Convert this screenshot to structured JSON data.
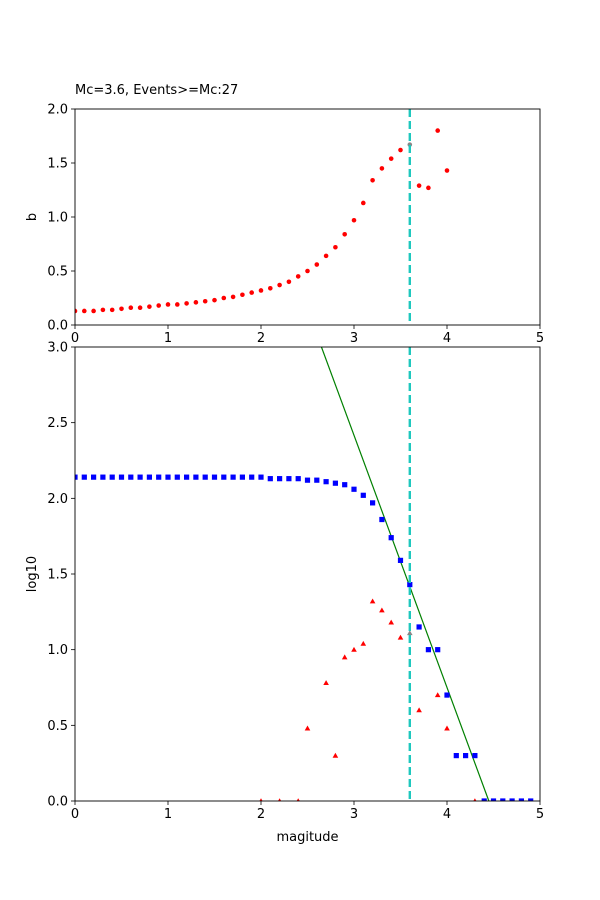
{
  "chart_data": [
    {
      "type": "scatter",
      "title": "Mc=3.6, Events>=Mc:27",
      "xlabel": "",
      "ylabel": "b",
      "xlim": [
        0,
        5
      ],
      "ylim": [
        0,
        2
      ],
      "xticks": [
        0,
        1,
        2,
        3,
        4,
        5
      ],
      "yticks": [
        0.0,
        0.5,
        1.0,
        1.5,
        2.0
      ],
      "grid": false,
      "mc_line": 3.6,
      "series": [
        {
          "color": "#ff0000",
          "marker": "circle",
          "x": [
            0.0,
            0.1,
            0.2,
            0.3,
            0.4,
            0.5,
            0.6,
            0.7,
            0.8,
            0.9,
            1.0,
            1.1,
            1.2,
            1.3,
            1.4,
            1.5,
            1.6,
            1.7,
            1.8,
            1.9,
            2.0,
            2.1,
            2.2,
            2.3,
            2.4,
            2.5,
            2.6,
            2.7,
            2.8,
            2.9,
            3.0,
            3.1,
            3.2,
            3.3,
            3.4,
            3.5,
            3.7,
            3.8,
            3.9,
            4.0
          ],
          "y": [
            0.13,
            0.13,
            0.13,
            0.14,
            0.14,
            0.15,
            0.16,
            0.16,
            0.17,
            0.18,
            0.19,
            0.19,
            0.2,
            0.21,
            0.22,
            0.23,
            0.25,
            0.26,
            0.28,
            0.3,
            0.32,
            0.34,
            0.37,
            0.4,
            0.45,
            0.5,
            0.56,
            0.64,
            0.72,
            0.84,
            0.97,
            1.13,
            1.34,
            1.45,
            1.54,
            1.62,
            1.29,
            1.27,
            1.8,
            1.43
          ]
        },
        {
          "color": "#888888",
          "marker": "circle",
          "x": [
            3.6
          ],
          "y": [
            1.67
          ]
        }
      ]
    },
    {
      "type": "scatter",
      "title": "",
      "xlabel": "magitude",
      "ylabel": "log10",
      "xlim": [
        0,
        5
      ],
      "ylim": [
        0,
        3
      ],
      "xticks": [
        0,
        1,
        2,
        3,
        4,
        5
      ],
      "yticks": [
        0.0,
        0.5,
        1.0,
        1.5,
        2.0,
        2.5,
        3.0
      ],
      "grid": false,
      "mc_line": 3.6,
      "fit_line": {
        "color": "#008000",
        "x": [
          2.65,
          4.45
        ],
        "y": [
          3.0,
          0.0
        ]
      },
      "series": [
        {
          "color": "#0000ff",
          "marker": "square",
          "x": [
            0.0,
            0.1,
            0.2,
            0.3,
            0.4,
            0.5,
            0.6,
            0.7,
            0.8,
            0.9,
            1.0,
            1.1,
            1.2,
            1.3,
            1.4,
            1.5,
            1.6,
            1.7,
            1.8,
            1.9,
            2.0,
            2.1,
            2.2,
            2.3,
            2.4,
            2.5,
            2.6,
            2.7,
            2.8,
            2.9,
            3.0,
            3.1,
            3.2,
            3.3,
            3.4,
            3.5,
            3.6,
            3.7,
            3.8,
            3.9,
            4.0,
            4.1,
            4.2,
            4.3,
            4.4,
            4.5,
            4.6,
            4.7,
            4.8,
            4.9
          ],
          "y": [
            2.14,
            2.14,
            2.14,
            2.14,
            2.14,
            2.14,
            2.14,
            2.14,
            2.14,
            2.14,
            2.14,
            2.14,
            2.14,
            2.14,
            2.14,
            2.14,
            2.14,
            2.14,
            2.14,
            2.14,
            2.14,
            2.13,
            2.13,
            2.13,
            2.13,
            2.12,
            2.12,
            2.11,
            2.1,
            2.09,
            2.06,
            2.02,
            1.97,
            1.86,
            1.74,
            1.59,
            1.43,
            1.15,
            1.0,
            1.0,
            0.7,
            0.3,
            0.3,
            0.3,
            0.0,
            0.0,
            0.0,
            0.0,
            0.0,
            0.0
          ]
        },
        {
          "color": "#ff0000",
          "marker": "triangle",
          "x": [
            2.0,
            2.2,
            2.4,
            2.5,
            2.7,
            2.8,
            2.9,
            3.0,
            3.1,
            3.2,
            3.3,
            3.4,
            3.5,
            3.7,
            3.9,
            4.0,
            4.3
          ],
          "y": [
            0.0,
            0.0,
            0.0,
            0.48,
            0.78,
            0.3,
            0.95,
            1.0,
            1.04,
            1.32,
            1.26,
            1.18,
            1.08,
            0.6,
            0.7,
            0.48,
            0.0
          ]
        },
        {
          "color": "#888888",
          "marker": "triangle",
          "x": [
            3.6
          ],
          "y": [
            1.11
          ]
        }
      ]
    }
  ]
}
